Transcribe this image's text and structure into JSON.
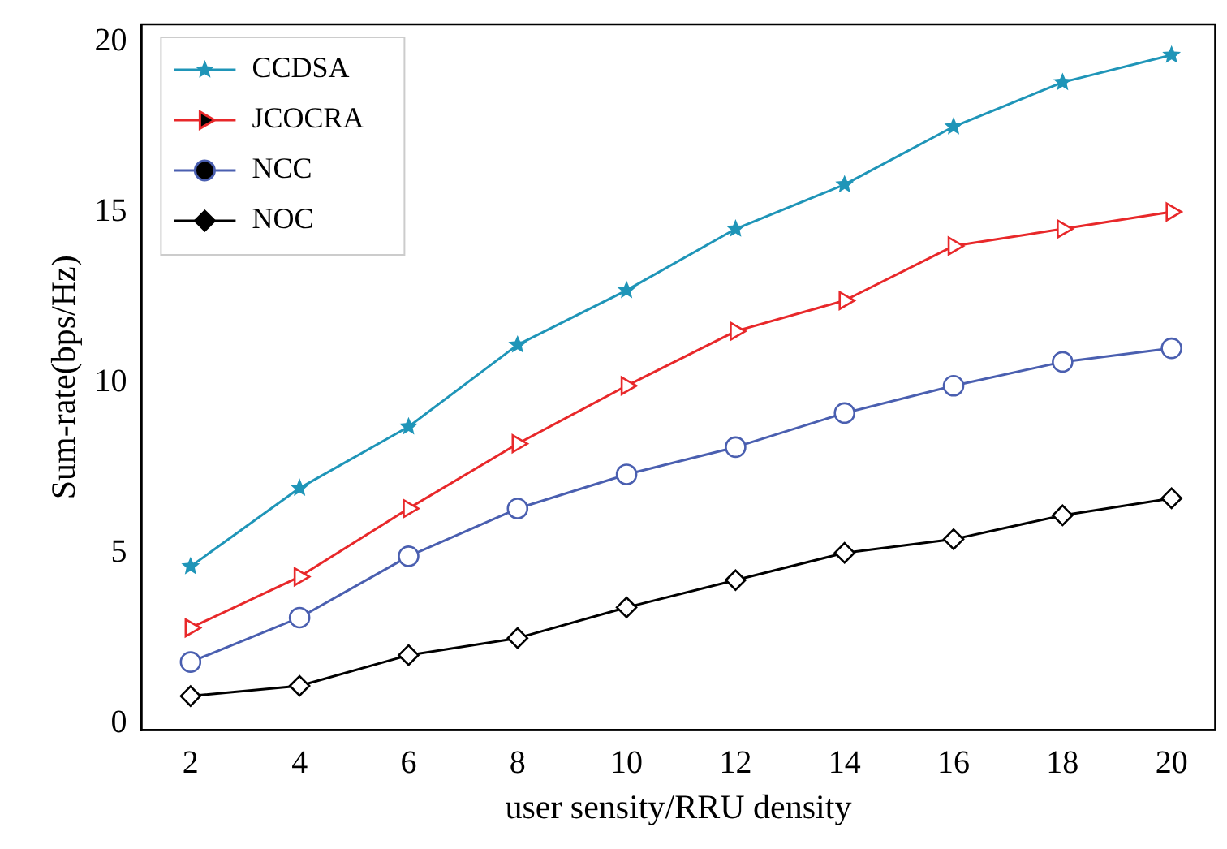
{
  "chart_data": {
    "type": "line",
    "xlabel": "user sensity/RRU density",
    "ylabel": "Sum-rate(bps/Hz)",
    "x": [
      2,
      4,
      6,
      8,
      10,
      12,
      14,
      16,
      18,
      20
    ],
    "xlim": [
      1.1,
      20.8
    ],
    "xticks": [
      2,
      4,
      6,
      8,
      10,
      12,
      14,
      16,
      18,
      20
    ],
    "ylim": [
      -0.2,
      20.5
    ],
    "yticks": [
      0,
      5,
      10,
      15,
      20
    ],
    "grid": false,
    "legend": "top left",
    "line_style": "solid",
    "series": [
      {
        "name": "CCDSA",
        "color": "#1f95b8",
        "marker": "star",
        "values": [
          4.6,
          6.9,
          8.7,
          11.1,
          12.7,
          14.5,
          15.8,
          17.5,
          18.8,
          19.6
        ]
      },
      {
        "name": "JCOCRA",
        "color": "#e8282a",
        "marker": "triangle",
        "values": [
          2.8,
          4.3,
          6.3,
          8.2,
          9.9,
          11.5,
          12.4,
          14.0,
          14.5,
          15.0
        ]
      },
      {
        "name": "NCC",
        "color": "#4a5fb0",
        "marker": "circle",
        "values": [
          1.8,
          3.1,
          4.9,
          6.3,
          7.3,
          8.1,
          9.1,
          9.9,
          10.6,
          11.0
        ]
      },
      {
        "name": "NOC",
        "color": "#000000",
        "marker": "diamond",
        "values": [
          0.8,
          1.1,
          2.0,
          2.5,
          3.4,
          4.2,
          5.0,
          5.4,
          6.1,
          6.6
        ]
      }
    ]
  }
}
